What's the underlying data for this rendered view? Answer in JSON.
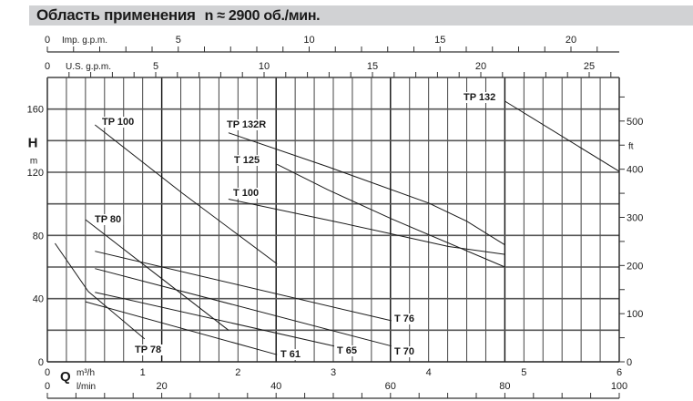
{
  "title": {
    "main": "Область применения",
    "speed": "n ≈ 2900 об./мин."
  },
  "chart_data": {
    "type": "line",
    "x_axis": {
      "symbol": "Q",
      "unit": "m³/h",
      "range": [
        0,
        6
      ],
      "ticks": [
        0,
        1,
        2,
        3,
        4,
        5,
        6
      ]
    },
    "x_axis_lmin": {
      "unit": "l/min",
      "range": [
        0,
        100
      ],
      "tick_labels": [
        0,
        20,
        40,
        60,
        80,
        100
      ]
    },
    "x_axis_imp_gpm": {
      "unit": "Imp. g.p.m.",
      "tick_labels": [
        0,
        5,
        10,
        15,
        20
      ]
    },
    "x_axis_us_gpm": {
      "unit": "U.S. g.p.m.",
      "tick_labels": [
        0,
        5,
        10,
        15,
        20,
        25
      ]
    },
    "y_axis": {
      "symbol": "H",
      "unit": "m",
      "range": [
        0,
        180
      ],
      "ticks": [
        0,
        40,
        80,
        120,
        160
      ]
    },
    "y_axis_right": {
      "unit": "ft",
      "tick_labels": [
        0,
        100,
        200,
        300,
        400,
        500
      ]
    },
    "grid": true,
    "series": [
      {
        "name": "TP 100",
        "points": [
          [
            0.5,
            150
          ],
          [
            1.41,
            107
          ],
          [
            2.41,
            62
          ]
        ]
      },
      {
        "name": "TP 80",
        "points": [
          [
            0.4,
            90
          ],
          [
            1.15,
            55
          ],
          [
            1.9,
            20
          ]
        ]
      },
      {
        "name": "TP 78",
        "points": [
          [
            0.08,
            75
          ],
          [
            0.43,
            44.5
          ],
          [
            1.02,
            14.5
          ]
        ]
      },
      {
        "name": "T 61",
        "points": [
          [
            0.4,
            38
          ],
          [
            2.41,
            4.5
          ]
        ]
      },
      {
        "name": "T 65",
        "points": [
          [
            0.5,
            44
          ],
          [
            3.01,
            10
          ]
        ]
      },
      {
        "name": "T 70",
        "points": [
          [
            0.5,
            59
          ],
          [
            3.61,
            10
          ]
        ]
      },
      {
        "name": "T 76",
        "points": [
          [
            0.5,
            70
          ],
          [
            3.61,
            26
          ]
        ]
      },
      {
        "name": "TP 132R",
        "points": [
          [
            1.9,
            145
          ],
          [
            2.94,
            123.5
          ],
          [
            4.0,
            100.5
          ],
          [
            4.4,
            89
          ],
          [
            4.8,
            74
          ]
        ]
      },
      {
        "name": "T 125",
        "points": [
          [
            2.41,
            125
          ],
          [
            2.94,
            109
          ],
          [
            3.61,
            90.5
          ],
          [
            4.8,
            60
          ]
        ]
      },
      {
        "name": "T 100",
        "points": [
          [
            1.9,
            103
          ],
          [
            3.04,
            88.5
          ],
          [
            3.61,
            81
          ],
          [
            4.21,
            73
          ],
          [
            4.8,
            68
          ]
        ]
      },
      {
        "name": "TP 132",
        "points": [
          [
            4.8,
            165
          ],
          [
            6.0,
            120.5
          ]
        ]
      }
    ]
  }
}
